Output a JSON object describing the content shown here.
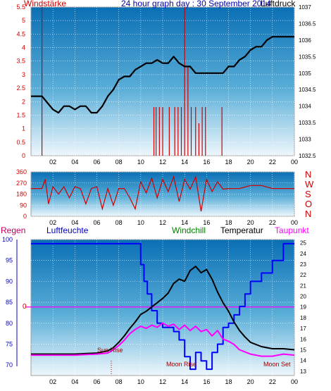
{
  "colors": {
    "background": "#ffffff",
    "frame": "#a0a0a0",
    "grid": "#ffffff",
    "wind": "#d00000",
    "pressure": "#000000",
    "temperature": "#000000",
    "humidity": "#0000ff",
    "dewpoint": "#ff00ff",
    "windchill": "#008000",
    "rain": "#d00000",
    "title": "#0000aa",
    "sun_moon": "#a00000"
  },
  "chart_data": [
    {
      "type": "line",
      "id": "wind-pressure",
      "title": "24 hour graph day : 30 September 2014",
      "left_label": "Windstärke",
      "right_label": "Luftdruck",
      "x_ticks": [
        "02",
        "04",
        "06",
        "08",
        "10",
        "12",
        "14",
        "16",
        "18",
        "20",
        "22",
        "00"
      ],
      "xlim": [
        0,
        24
      ],
      "y_left_ticks": [
        "0",
        "0.5",
        "1",
        "1.5",
        "2",
        "2.5",
        "3",
        "3.5",
        "4",
        "4.5",
        "5",
        "5.5"
      ],
      "y_left_range": [
        0,
        5.5
      ],
      "y_right_ticks": [
        "1032.5",
        "1033",
        "1033.5",
        "1034",
        "1034.5",
        "1035",
        "1035.5",
        "1036",
        "1036.5",
        "1037"
      ],
      "y_right_range": [
        1032.5,
        1037
      ],
      "series": [
        {
          "axis": "right",
          "x": [
            0,
            0.5,
            1,
            1.5,
            2,
            2.5,
            3,
            3.5,
            4,
            4.5,
            5,
            5.5,
            6,
            6.5,
            7,
            7.5,
            8,
            8.5,
            9,
            9.5,
            10,
            10.5,
            11,
            11.5,
            12,
            12.5,
            13,
            13.5,
            14,
            14.5,
            15,
            15.5,
            16,
            16.5,
            17,
            17.5,
            18,
            18.5,
            19,
            19.5,
            20,
            20.5,
            21,
            21.5,
            22,
            22.5,
            23,
            23.5,
            24
          ],
          "y": [
            1034.3,
            1034.3,
            1034.3,
            1034.1,
            1033.9,
            1033.8,
            1034.0,
            1034.0,
            1033.9,
            1034.0,
            1034.0,
            1033.8,
            1033.8,
            1034.0,
            1034.3,
            1034.5,
            1034.8,
            1034.9,
            1034.9,
            1035.1,
            1035.2,
            1035.3,
            1035.3,
            1035.4,
            1035.3,
            1035.3,
            1035.5,
            1035.3,
            1035.2,
            1035.2,
            1035.0,
            1035.0,
            1035.0,
            1035.0,
            1035.0,
            1035.0,
            1035.2,
            1035.2,
            1035.4,
            1035.5,
            1035.7,
            1035.8,
            1035.8,
            1036.0,
            1036.1,
            1036.1,
            1036.1,
            1036.1,
            1036.1
          ]
        }
      ],
      "wind_spikes": [
        {
          "x": 1.0,
          "y": 5.5
        },
        {
          "x": 11.2,
          "y": 1.8
        },
        {
          "x": 11.4,
          "y": 1.8
        },
        {
          "x": 11.7,
          "y": 1.8
        },
        {
          "x": 12.0,
          "y": 1.8
        },
        {
          "x": 12.6,
          "y": 1.8
        },
        {
          "x": 13.1,
          "y": 1.8
        },
        {
          "x": 13.4,
          "y": 1.8
        },
        {
          "x": 13.7,
          "y": 1.8
        },
        {
          "x": 14.0,
          "y": 5.5
        },
        {
          "x": 14.3,
          "y": 3.3
        },
        {
          "x": 14.6,
          "y": 1.8
        },
        {
          "x": 15.0,
          "y": 1.8
        },
        {
          "x": 15.3,
          "y": 1.2
        },
        {
          "x": 15.6,
          "y": 1.8
        },
        {
          "x": 15.9,
          "y": 1.8
        },
        {
          "x": 17.4,
          "y": 1.8
        }
      ]
    },
    {
      "type": "line",
      "id": "wind-direction",
      "x_ticks": [
        "02",
        "04",
        "06",
        "08",
        "10",
        "12",
        "14",
        "16",
        "18",
        "20",
        "22",
        "00"
      ],
      "xlim": [
        0,
        24
      ],
      "y_ticks": [
        "0",
        "90",
        "180",
        "270",
        "360"
      ],
      "ylim": [
        0,
        360
      ],
      "compass_labels": [
        "N",
        "W",
        "S",
        "O",
        "N"
      ],
      "series": [
        {
          "x": [
            0,
            1,
            1.3,
            1.6,
            2,
            2.5,
            3,
            3.5,
            4,
            4.5,
            5,
            5.5,
            6,
            6.5,
            7,
            7.5,
            8,
            8.5,
            9,
            9.5,
            10,
            10.5,
            11,
            11.5,
            12,
            12.5,
            13,
            13.5,
            14,
            14.5,
            15,
            15.5,
            16,
            16.5,
            17,
            17.5,
            18,
            19,
            20,
            21,
            22,
            23,
            24
          ],
          "y": [
            225,
            225,
            300,
            100,
            240,
            180,
            240,
            150,
            240,
            225,
            100,
            225,
            240,
            60,
            225,
            90,
            225,
            225,
            150,
            60,
            280,
            190,
            310,
            150,
            300,
            200,
            320,
            120,
            300,
            220,
            320,
            40,
            300,
            200,
            280,
            220,
            225,
            225,
            250,
            250,
            225,
            225,
            225
          ]
        }
      ]
    },
    {
      "type": "line",
      "id": "temp-humidity",
      "labels": [
        "Regen",
        "Luftfeuchte",
        "Windchill",
        "Temperatur",
        "Taupunkt"
      ],
      "x_ticks": [
        "02",
        "04",
        "06",
        "08",
        "10",
        "12",
        "14",
        "16",
        "18",
        "20",
        "22",
        "00"
      ],
      "xlim": [
        0,
        24
      ],
      "y_left_ticks": [
        "70",
        "75",
        "80",
        "85",
        "90",
        "95",
        "100"
      ],
      "y_left_range": [
        67.5,
        100
      ],
      "y_right_ticks": [
        "13",
        "14",
        "15",
        "16",
        "17",
        "18",
        "19",
        "20",
        "21",
        "22",
        "23",
        "24",
        "25"
      ],
      "y_right_range": [
        12.6,
        25.3
      ],
      "rain_marker": "0",
      "rain_value": 0,
      "annotations": [
        "Sun Rise",
        "Moon Rise",
        "Moon Set"
      ],
      "series": [
        {
          "name": "Luftfeuchte",
          "axis": "left",
          "x": [
            0,
            2,
            4,
            6,
            8,
            9,
            9.5,
            10,
            10.3,
            10.6,
            11,
            11.5,
            12,
            12.5,
            13,
            13.5,
            14,
            14.5,
            15,
            15.5,
            16,
            16.5,
            17,
            17.5,
            18,
            18.5,
            19,
            19.5,
            20,
            21,
            22,
            23,
            24
          ],
          "y": [
            99,
            99,
            99,
            99,
            99,
            99,
            99,
            94,
            90,
            87,
            83,
            80,
            79,
            79,
            78,
            76,
            72,
            69,
            73,
            71,
            69,
            73,
            75,
            79,
            80,
            82,
            84,
            87,
            90,
            92,
            95,
            99,
            99
          ]
        },
        {
          "name": "Temperatur",
          "axis": "right",
          "x": [
            0,
            2,
            4,
            6,
            7,
            7.5,
            8,
            8.5,
            9,
            9.5,
            10,
            10.5,
            11,
            11.5,
            12,
            12.5,
            13,
            13.5,
            14,
            14.5,
            15,
            15.5,
            16,
            16.5,
            17,
            17.5,
            18,
            18.5,
            19,
            19.5,
            20,
            21,
            22,
            23,
            24
          ],
          "y": [
            14.6,
            14.6,
            14.6,
            14.7,
            14.9,
            15.2,
            15.7,
            16.3,
            17.0,
            17.6,
            18.3,
            18.6,
            19.0,
            19.4,
            19.8,
            20.3,
            21.2,
            21.6,
            21.4,
            22.4,
            22.8,
            22.2,
            22.5,
            21.6,
            20.4,
            19.4,
            18.6,
            17.6,
            16.8,
            16.2,
            15.7,
            15.3,
            15.1,
            15.1,
            15.0
          ]
        },
        {
          "name": "Taupunkt",
          "axis": "right",
          "x": [
            0,
            2,
            4,
            6,
            7,
            7.5,
            8,
            8.5,
            9,
            9.5,
            10,
            10.5,
            11,
            11.5,
            12,
            12.5,
            13,
            13.5,
            14,
            14.5,
            15,
            15.5,
            16,
            16.5,
            17,
            17.5,
            18,
            18.5,
            19,
            19.5,
            20,
            21,
            22,
            23,
            24
          ],
          "y": [
            14.5,
            14.5,
            14.5,
            14.6,
            14.7,
            15.0,
            15.4,
            15.9,
            16.5,
            16.9,
            17.2,
            17.0,
            17.3,
            17.1,
            17.5,
            17.2,
            17.4,
            16.9,
            17.3,
            16.8,
            17.2,
            16.7,
            16.9,
            16.3,
            16.8,
            16.0,
            15.8,
            15.5,
            15.0,
            14.8,
            14.6,
            14.4,
            14.4,
            14.6,
            14.5
          ]
        }
      ]
    }
  ]
}
